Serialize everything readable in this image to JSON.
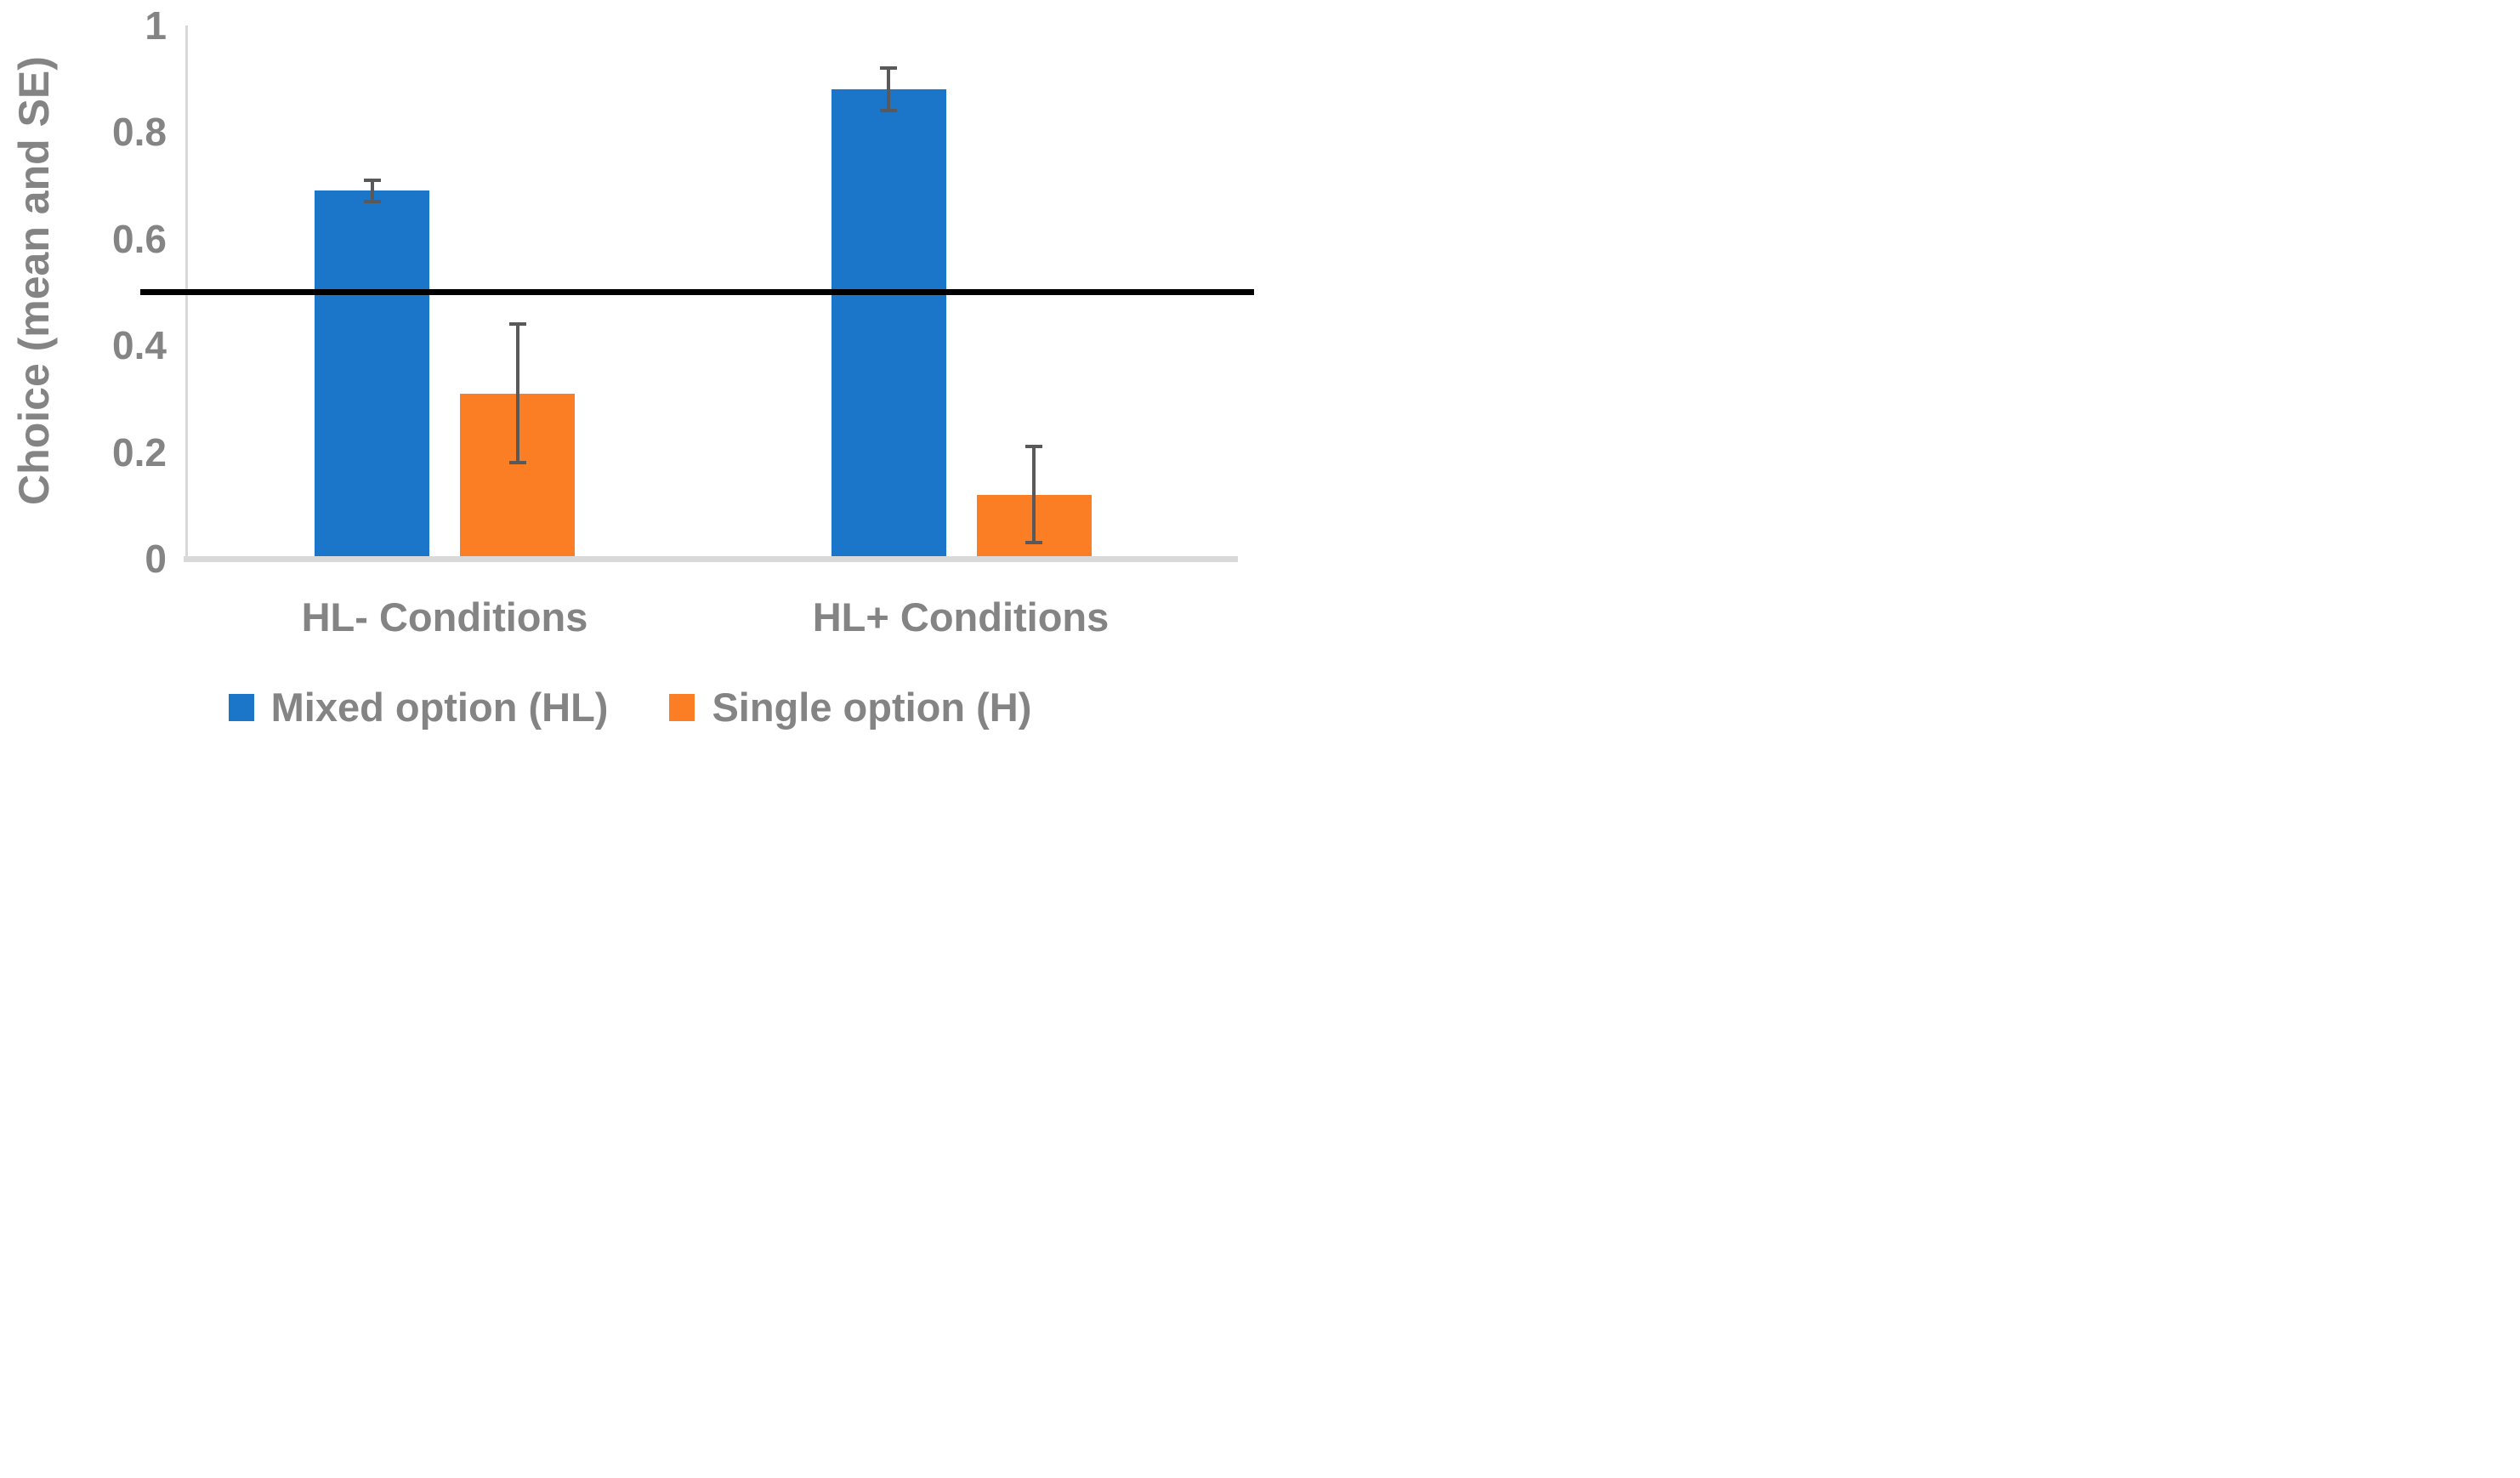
{
  "chart_data": {
    "type": "bar",
    "subtype": "grouped-vertical-with-error-bars",
    "title": "",
    "ylabel": "Choice (mean and SE)",
    "xlabel": "",
    "categories": [
      "HL- Conditions",
      "HL+ Conditions"
    ],
    "series": [
      {
        "name": "Mixed option (HL)",
        "color": "#1b75c8",
        "values": [
          0.69,
          0.88
        ],
        "se": [
          0.02,
          0.04
        ],
        "error_cap_low": [
          0.67,
          0.84
        ],
        "error_cap_high": [
          0.71,
          0.92
        ]
      },
      {
        "name": "Single option (H)",
        "color": "#fb7d24",
        "values": [
          0.31,
          0.12
        ],
        "se": [
          0.13,
          0.09
        ],
        "error_cap_low": [
          0.18,
          0.03
        ],
        "error_cap_high": [
          0.44,
          0.21
        ]
      }
    ],
    "ylim": [
      0,
      1
    ],
    "yticks": [
      0,
      0.2,
      0.4,
      0.6,
      0.8,
      1
    ],
    "ytick_labels": [
      "0",
      "0.2",
      "0.4",
      "0.6",
      "0.8",
      "1"
    ],
    "reference_line": 0.5,
    "reference_line_color": "#000000",
    "error_bar_color": "#595959",
    "axis_line_color": "#d9d9d9",
    "text_color": "#848484",
    "grid": false,
    "legend_position": "bottom"
  }
}
